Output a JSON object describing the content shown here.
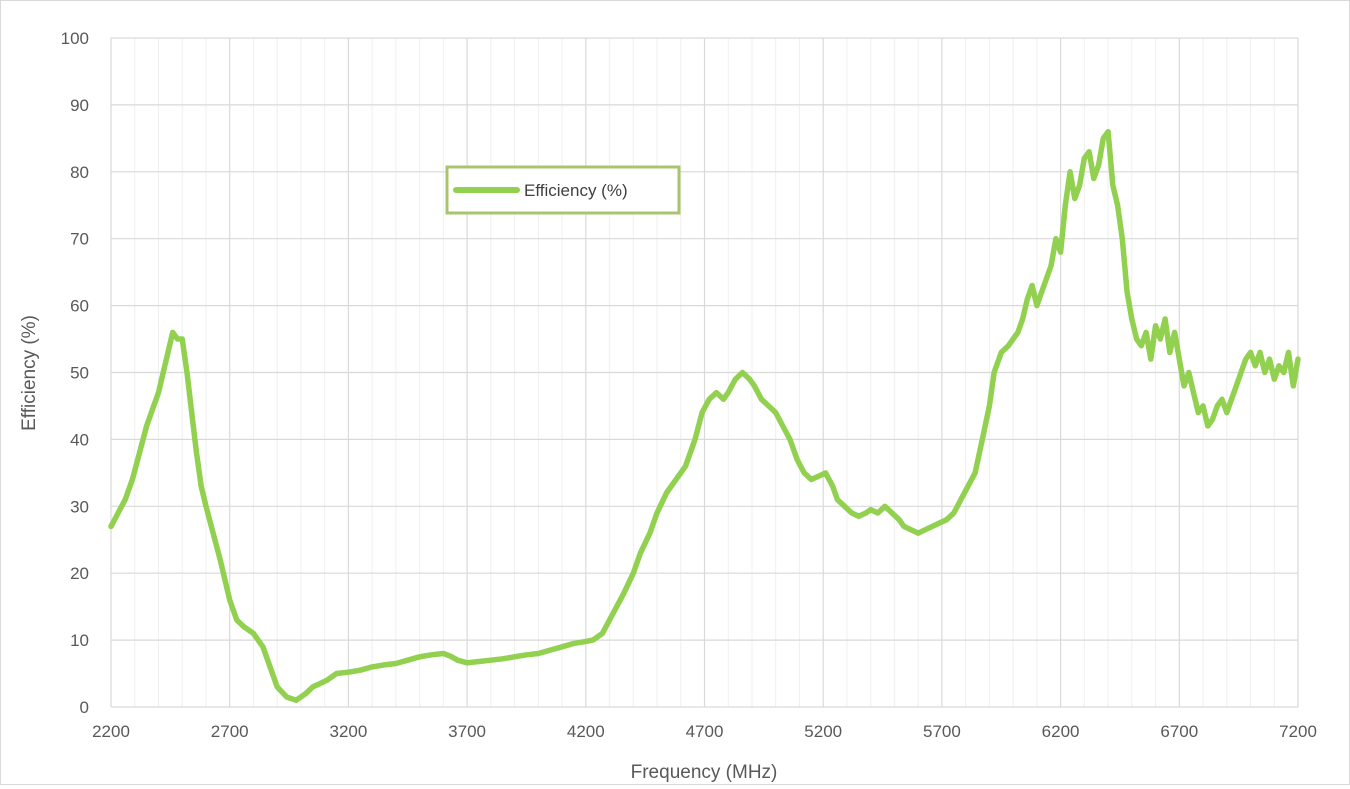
{
  "chart_data": {
    "type": "line",
    "title": "",
    "xlabel": "Frequency (MHz)",
    "ylabel": "Efficiency (%)",
    "xlim": [
      2200,
      7200
    ],
    "ylim": [
      0,
      100
    ],
    "x_ticks": [
      "2200",
      "2700",
      "3200",
      "3700",
      "4200",
      "4700",
      "5200",
      "5700",
      "6200",
      "6700",
      "7200"
    ],
    "y_ticks": [
      "0",
      "10",
      "20",
      "30",
      "40",
      "50",
      "60",
      "70",
      "80",
      "90",
      "100"
    ],
    "x_major_step": 500,
    "x_minor_step": 100,
    "y_major_step": 10,
    "grid": true,
    "legend_position": "upper-center",
    "series": [
      {
        "name": "Efficiency (%)",
        "color": "#92d050",
        "x": [
          2200,
          2230,
          2260,
          2290,
          2320,
          2350,
          2380,
          2400,
          2420,
          2440,
          2460,
          2480,
          2500,
          2520,
          2540,
          2560,
          2580,
          2600,
          2630,
          2660,
          2700,
          2730,
          2760,
          2800,
          2840,
          2870,
          2900,
          2940,
          2980,
          3020,
          3050,
          3080,
          3110,
          3150,
          3200,
          3250,
          3300,
          3350,
          3400,
          3450,
          3500,
          3550,
          3600,
          3630,
          3660,
          3700,
          3750,
          3800,
          3850,
          3900,
          3950,
          4000,
          4050,
          4100,
          4150,
          4200,
          4230,
          4270,
          4300,
          4330,
          4360,
          4400,
          4430,
          4470,
          4500,
          4540,
          4580,
          4620,
          4660,
          4690,
          4720,
          4750,
          4780,
          4800,
          4830,
          4860,
          4890,
          4910,
          4940,
          4970,
          5000,
          5030,
          5060,
          5090,
          5120,
          5150,
          5180,
          5210,
          5240,
          5260,
          5290,
          5320,
          5350,
          5380,
          5400,
          5430,
          5460,
          5490,
          5520,
          5540,
          5570,
          5600,
          5630,
          5660,
          5690,
          5720,
          5750,
          5780,
          5810,
          5840,
          5870,
          5900,
          5920,
          5950,
          5980,
          6000,
          6020,
          6040,
          6060,
          6080,
          6100,
          6120,
          6140,
          6160,
          6180,
          6200,
          6220,
          6240,
          6260,
          6280,
          6300,
          6320,
          6340,
          6360,
          6380,
          6400,
          6420,
          6440,
          6460,
          6480,
          6500,
          6520,
          6540,
          6560,
          6580,
          6600,
          6620,
          6640,
          6660,
          6680,
          6700,
          6720,
          6740,
          6760,
          6780,
          6800,
          6820,
          6840,
          6860,
          6880,
          6900,
          6920,
          6940,
          6960,
          6980,
          7000,
          7020,
          7040,
          7060,
          7080,
          7100,
          7120,
          7140,
          7160,
          7180,
          7200
        ],
        "y": [
          27,
          29,
          31,
          34,
          38,
          42,
          45,
          47,
          50,
          53,
          56,
          55,
          55,
          50,
          44,
          38,
          33,
          30,
          26,
          22,
          16,
          13,
          12,
          11,
          9,
          6,
          3,
          1.5,
          1,
          2,
          3,
          3.5,
          4,
          5,
          5.2,
          5.5,
          6,
          6.3,
          6.5,
          7,
          7.5,
          7.8,
          8,
          7.6,
          7,
          6.6,
          6.8,
          7,
          7.2,
          7.5,
          7.8,
          8,
          8.5,
          9,
          9.5,
          9.8,
          10,
          11,
          13,
          15,
          17,
          20,
          23,
          26,
          29,
          32,
          34,
          36,
          40,
          44,
          46,
          47,
          46,
          47,
          49,
          50,
          49,
          48,
          46,
          45,
          44,
          42,
          40,
          37,
          35,
          34,
          34.5,
          35,
          33,
          31,
          30,
          29,
          28.5,
          29,
          29.5,
          29,
          30,
          29,
          28,
          27,
          26.5,
          26,
          26.5,
          27,
          27.5,
          28,
          29,
          31,
          33,
          35,
          40,
          45,
          50,
          53,
          54,
          55,
          56,
          58,
          61,
          63,
          60,
          62,
          64,
          66,
          70,
          68,
          75,
          80,
          76,
          78,
          82,
          83,
          79,
          81,
          85,
          86,
          78,
          75,
          70,
          62,
          58,
          55,
          54,
          56,
          52,
          57,
          55,
          58,
          53,
          56,
          52,
          48,
          50,
          47,
          44,
          45,
          42,
          43,
          45,
          46,
          44,
          46,
          48,
          50,
          52,
          53,
          51,
          53,
          50,
          52,
          49,
          51,
          50,
          53,
          48,
          52
        ]
      }
    ]
  }
}
